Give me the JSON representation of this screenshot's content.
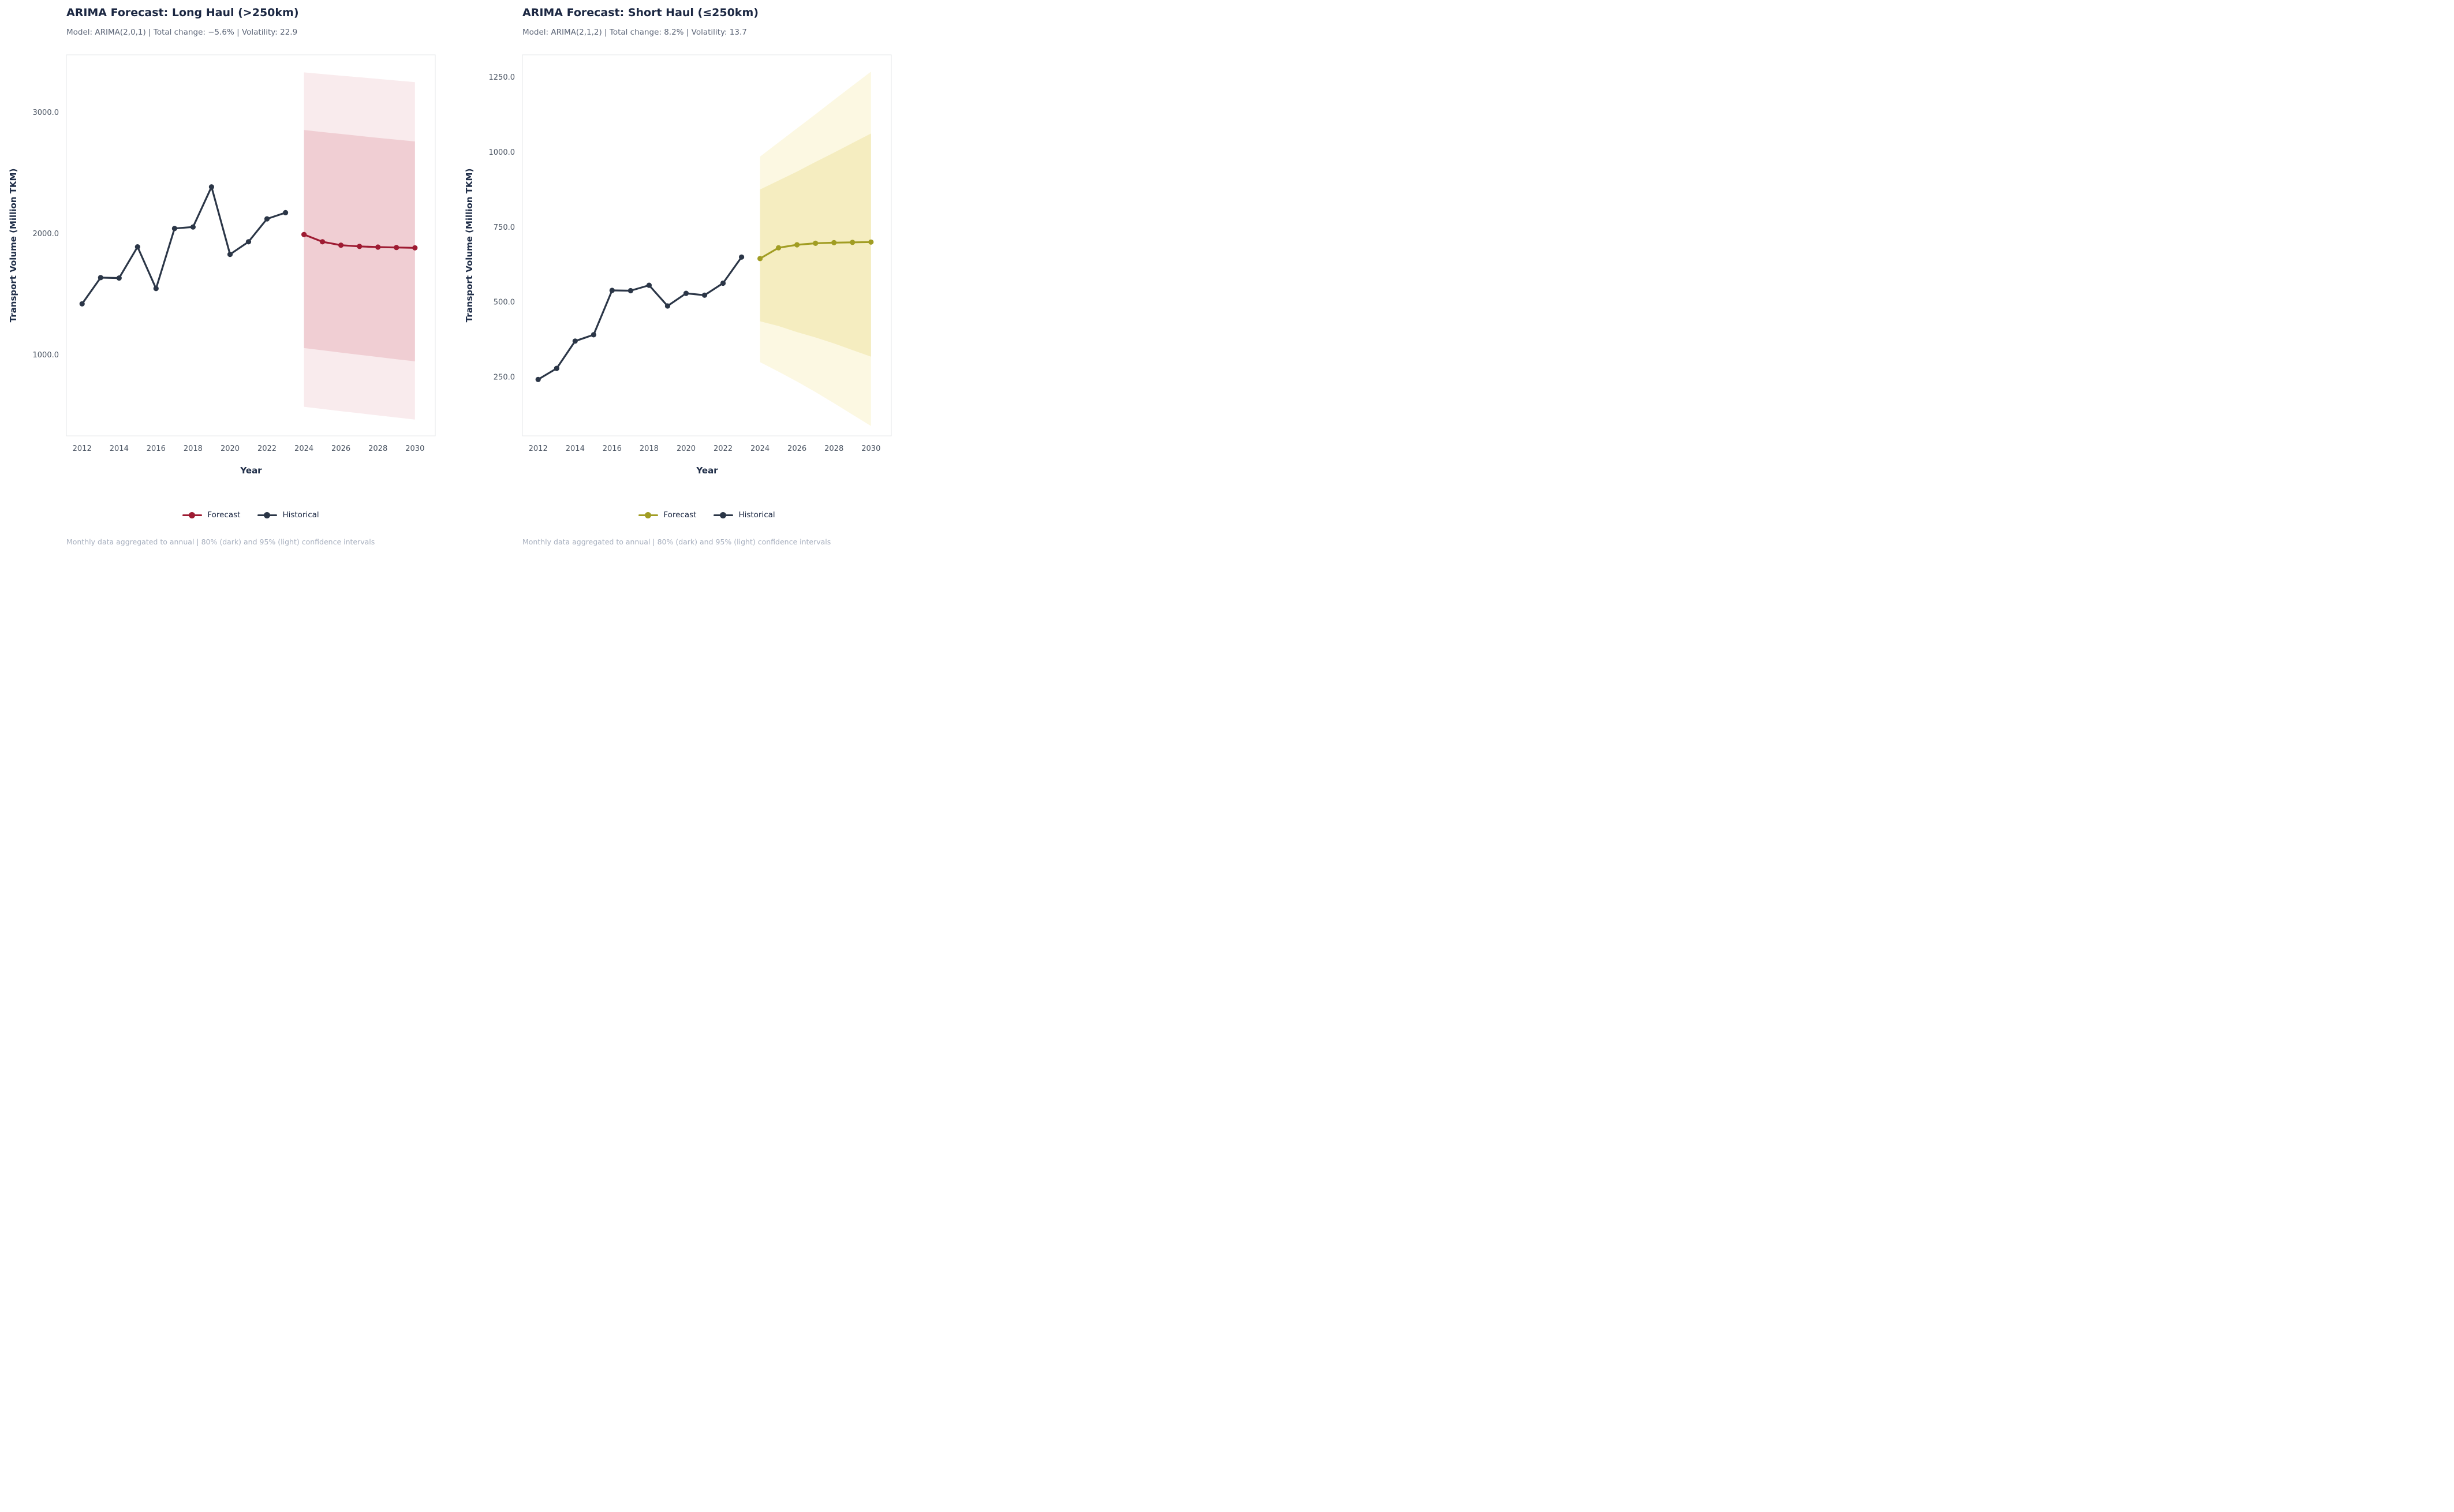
{
  "page": {
    "background": "#ffffff"
  },
  "chart_data": [
    {
      "type": "line",
      "title": "ARIMA Forecast: Long Haul (>250km)",
      "subtitle": "Model: ARIMA(2,0,1) | Total change: −5.6% | Volatility: 22.9",
      "xlabel": "Year",
      "ylabel": "Transport Volume (Million TKM)",
      "footnote": "Monthly data aggregated to annual | 80% (dark) and 95% (light) confidence intervals",
      "xlim": [
        2011.15,
        2031.1
      ],
      "ylim": [
        330,
        3475
      ],
      "grid": false,
      "legend_position": "bottom-center",
      "x_ticks": [
        2012,
        2014,
        2016,
        2018,
        2020,
        2022,
        2024,
        2026,
        2028,
        2030
      ],
      "y_ticks": [
        {
          "label": "3000.0",
          "value": 3000
        },
        {
          "label": "2000.0",
          "value": 2000
        },
        {
          "label": "1000.0",
          "value": 1000
        }
      ],
      "series": [
        {
          "name": "Historical",
          "x": [
            2012,
            2013,
            2014,
            2015,
            2016,
            2017,
            2018,
            2019,
            2020,
            2021,
            2022,
            2023
          ],
          "y": [
            1420,
            1636,
            1633,
            1890,
            1546,
            2042,
            2054,
            2385,
            1828,
            1932,
            2121,
            2172
          ]
        },
        {
          "name": "Forecast",
          "x": [
            2024,
            2025,
            2026,
            2027,
            2028,
            2029,
            2030
          ],
          "y": [
            1992,
            1932,
            1904,
            1894,
            1888,
            1885,
            1882
          ]
        }
      ],
      "ci80": {
        "upper": [
          2855,
          2838,
          2822,
          2806,
          2790,
          2775,
          2760
        ],
        "lower": [
          1055,
          1036,
          1017,
          999,
          981,
          963,
          945
        ]
      },
      "ci95": {
        "upper": [
          3330,
          3317,
          3303,
          3290,
          3277,
          3263,
          3250
        ],
        "lower": [
          570,
          552,
          534,
          517,
          499,
          482,
          465
        ]
      },
      "colors": {
        "historical": "#2b3647",
        "forecast": "#9e1b32",
        "ci80": "#f0ced3",
        "ci95": "#f9ebed"
      },
      "legend": [
        {
          "label": "Forecast",
          "color": "#9e1b32"
        },
        {
          "label": "Historical",
          "color": "#2b3647"
        }
      ]
    },
    {
      "type": "line",
      "title": "ARIMA Forecast: Short Haul (≤250km)",
      "subtitle": "Model: ARIMA(2,1,2) | Total change: 8.2% | Volatility: 13.7",
      "xlabel": "Year",
      "ylabel": "Transport Volume (Million TKM)",
      "footnote": "Monthly data aggregated to annual | 80% (dark) and 95% (light) confidence intervals",
      "xlim": [
        2011.15,
        2031.1
      ],
      "ylim": [
        54,
        1324
      ],
      "grid": false,
      "legend_position": "bottom-center",
      "x_ticks": [
        2012,
        2014,
        2016,
        2018,
        2020,
        2022,
        2024,
        2026,
        2028,
        2030
      ],
      "y_ticks": [
        {
          "label": "1250.0",
          "value": 1250
        },
        {
          "label": "1000.0",
          "value": 1000
        },
        {
          "label": "750.0",
          "value": 750
        },
        {
          "label": "500.0",
          "value": 500
        },
        {
          "label": "250.0",
          "value": 250
        }
      ],
      "series": [
        {
          "name": "Historical",
          "x": [
            2012,
            2013,
            2014,
            2015,
            2016,
            2017,
            2018,
            2019,
            2020,
            2021,
            2022,
            2023
          ],
          "y": [
            242,
            279,
            370,
            391,
            539,
            538,
            556,
            487,
            529,
            523,
            563,
            650
          ]
        },
        {
          "name": "Forecast",
          "x": [
            2024,
            2025,
            2026,
            2027,
            2028,
            2029,
            2030
          ],
          "y": [
            645,
            681,
            691,
            696,
            698,
            699,
            700
          ]
        }
      ],
      "ci80": {
        "upper": [
          875,
          905,
          935,
          967,
          998,
          1030,
          1062
        ],
        "lower": [
          436,
          420,
          400,
          382,
          362,
          340,
          318
        ]
      },
      "ci95": {
        "upper": [
          985,
          1032,
          1079,
          1126,
          1174,
          1221,
          1268
        ],
        "lower": [
          300,
          268,
          235,
          200,
          163,
          125,
          87
        ]
      },
      "colors": {
        "historical": "#2b3647",
        "forecast": "#a19d23",
        "ci80": "#f5edc0",
        "ci95": "#fcf8e2"
      },
      "legend": [
        {
          "label": "Forecast",
          "color": "#a19d23"
        },
        {
          "label": "Historical",
          "color": "#2b3647"
        }
      ]
    }
  ]
}
